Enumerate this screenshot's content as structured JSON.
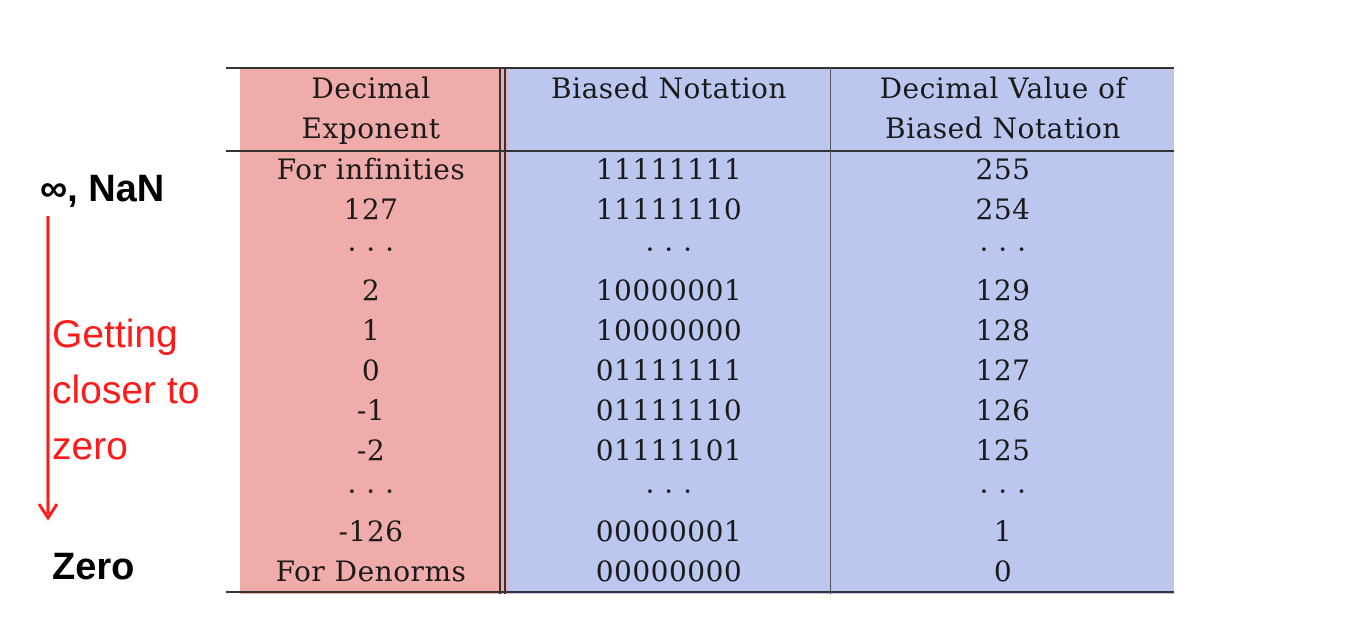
{
  "labels": {
    "top": "∞, NaN",
    "description_lines": [
      "Getting",
      "closer to",
      "zero"
    ],
    "bottom": "Zero"
  },
  "colors": {
    "red_column": "#efacaa",
    "blue_columns": "#bcc7f0",
    "arrow": "#ff1a1a"
  },
  "table": {
    "headers": [
      [
        "Decimal",
        "Exponent"
      ],
      [
        "Biased Notation",
        ""
      ],
      [
        "Decimal Value of",
        "Biased Notation"
      ]
    ],
    "rows": [
      [
        "For infinities",
        "11111111",
        "255"
      ],
      [
        "127",
        "11111110",
        "254"
      ],
      [
        "· · ·",
        "· · ·",
        "· · ·"
      ],
      [
        "2",
        "10000001",
        "129"
      ],
      [
        "1",
        "10000000",
        "128"
      ],
      [
        "0",
        "01111111",
        "127"
      ],
      [
        "-1",
        "01111110",
        "126"
      ],
      [
        "-2",
        "01111101",
        "125"
      ],
      [
        "· · ·",
        "· · ·",
        "· · ·"
      ],
      [
        "-126",
        "00000001",
        "1"
      ],
      [
        "For Denorms",
        "00000000",
        "0"
      ]
    ]
  }
}
